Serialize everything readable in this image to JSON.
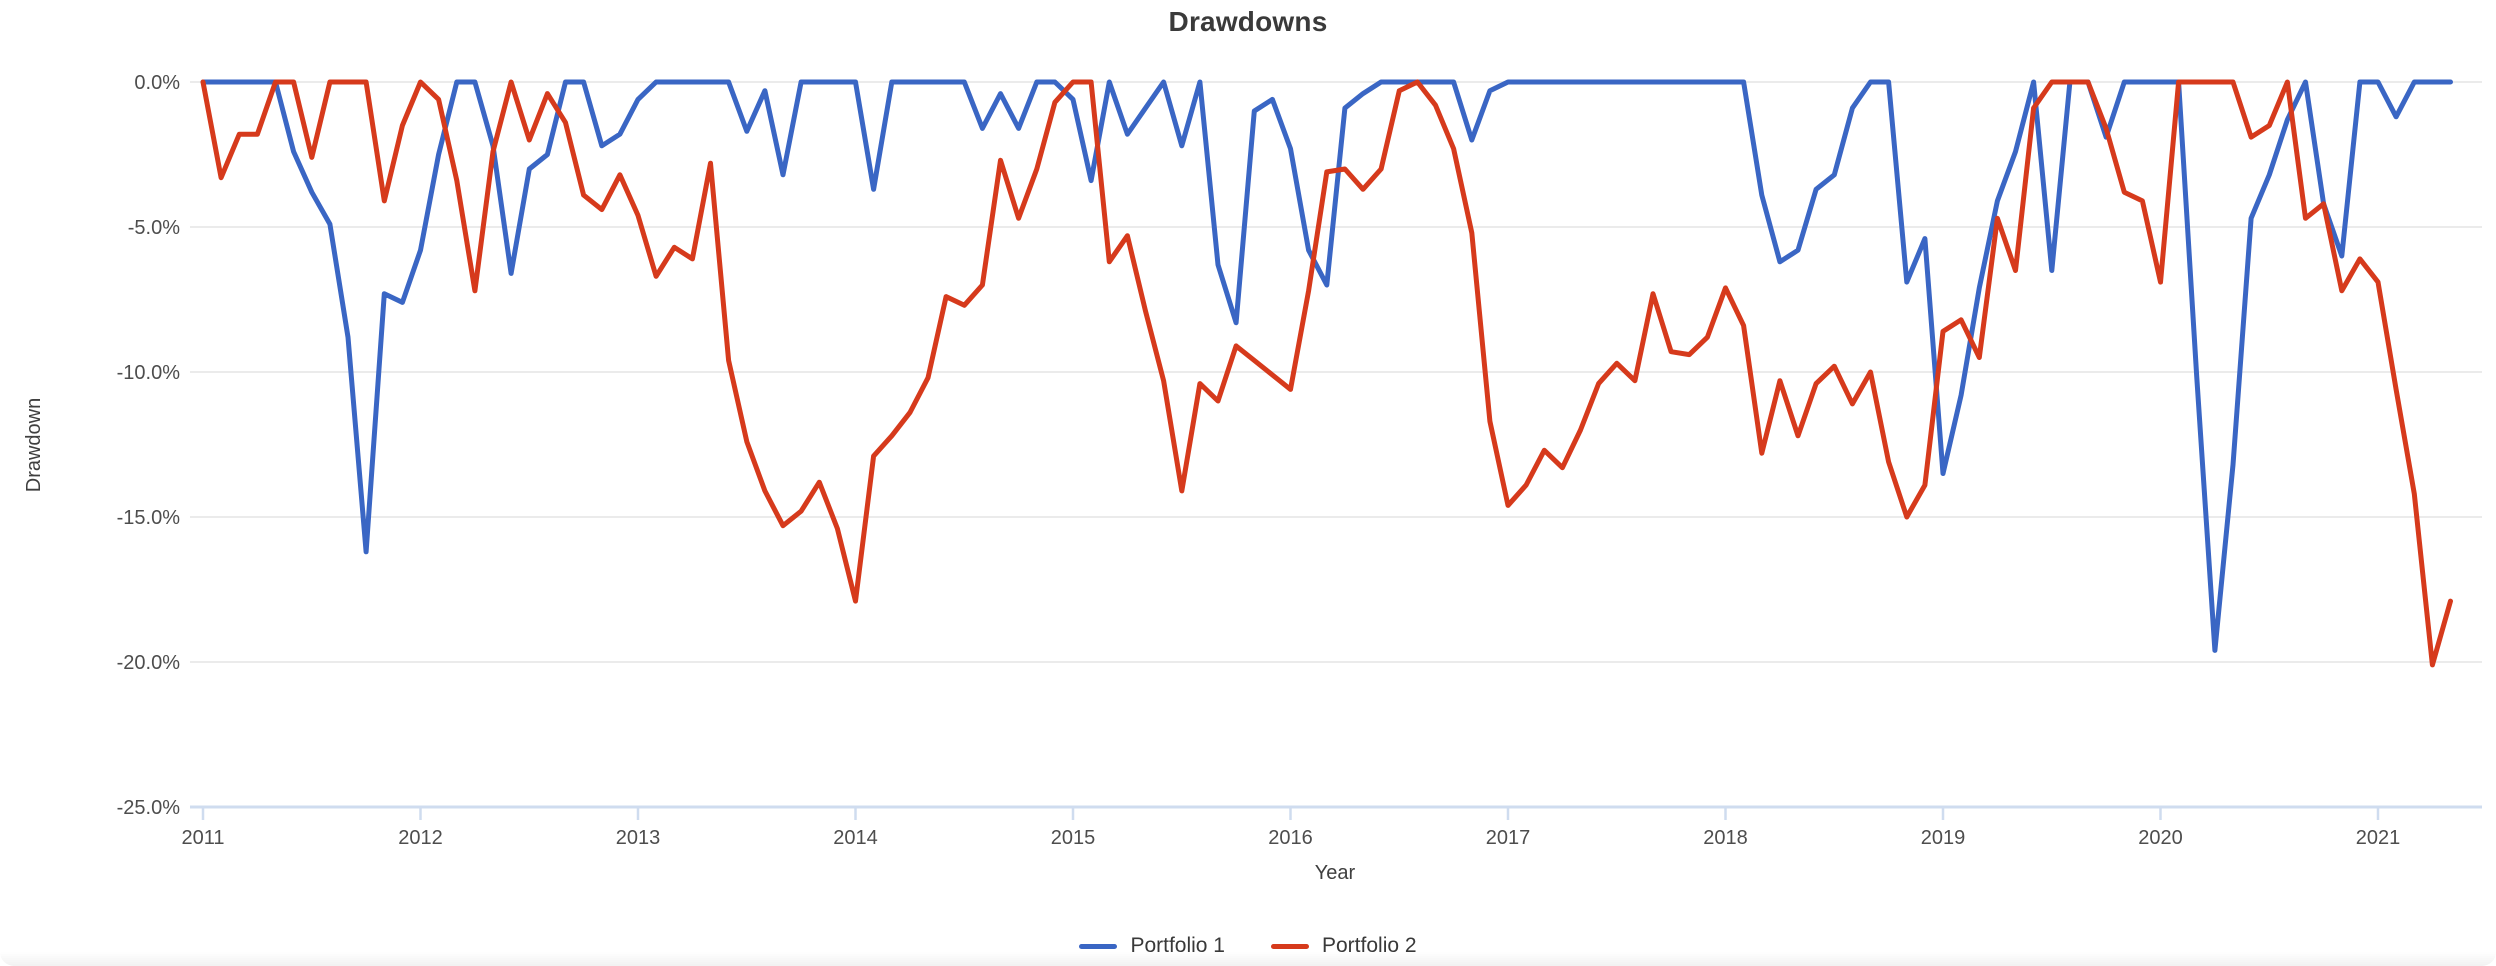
{
  "chart_data": {
    "type": "line",
    "title": "Drawdowns",
    "xlabel": "Year",
    "ylabel": "Drawdown",
    "x_tick_labels": [
      "2011",
      "2012",
      "2013",
      "2014",
      "2015",
      "2016",
      "2017",
      "2018",
      "2019",
      "2020",
      "2021"
    ],
    "x_frequency": "monthly",
    "x_start": "2011-01",
    "x_points": 125,
    "y_tick_labels": [
      "0.0%",
      "-5.0%",
      "-10.0%",
      "-15.0%",
      "-20.0%",
      "-25.0%"
    ],
    "y_tick_values": [
      0,
      -5,
      -10,
      -15,
      -20,
      -25
    ],
    "ylim": [
      -25,
      0
    ],
    "grid": true,
    "legend_position": "bottom",
    "colors": {
      "series1": "#3a66c4",
      "series2": "#d63a1c",
      "gridline": "#ebebeb",
      "axis_line": "#cfdcef",
      "tick_text": "#4d4d4d",
      "axis_title_text": "#3f3f3f",
      "title_text": "#3a3a3a"
    },
    "series": [
      {
        "name": "Portfolio 1",
        "color": "#3a66c4",
        "values": [
          0,
          0,
          0,
          0,
          0,
          -2.4,
          -3.8,
          -4.9,
          -8.8,
          -16.2,
          -7.3,
          -7.6,
          -5.8,
          -2.5,
          0,
          0,
          -2.2,
          -6.6,
          -3.0,
          -2.5,
          0,
          0,
          -2.2,
          -1.8,
          -0.6,
          0,
          0,
          0,
          0,
          0,
          -1.7,
          -0.3,
          -3.2,
          0,
          0,
          0,
          0,
          -3.7,
          0,
          0,
          0,
          0,
          0,
          -1.6,
          -0.4,
          -1.6,
          0,
          0,
          -0.6,
          -3.4,
          0,
          -1.8,
          -0.9,
          0,
          -2.2,
          0,
          -6.3,
          -8.3,
          -1.0,
          -0.6,
          -2.3,
          -5.8,
          -7.0,
          -0.9,
          -0.4,
          0,
          0,
          0,
          0,
          0,
          -2.0,
          -0.3,
          0,
          0,
          0,
          0,
          0,
          0,
          0,
          0,
          0,
          0,
          0,
          0,
          0,
          0,
          -3.9,
          -6.2,
          -5.8,
          -3.7,
          -3.2,
          -0.9,
          0,
          0,
          -6.9,
          -5.4,
          -13.5,
          -10.8,
          -7.1,
          -4.1,
          -2.4,
          0,
          -6.5,
          0,
          0,
          -1.9,
          0,
          0,
          0,
          0,
          -10.2,
          -19.6,
          -13.2,
          -4.7,
          -3.2,
          -1.3,
          0,
          -4.2,
          -6.0,
          0,
          0,
          -1.2,
          0,
          0,
          0
        ]
      },
      {
        "name": "Portfolio 2",
        "color": "#d63a1c",
        "values": [
          0,
          -3.3,
          -1.8,
          -1.8,
          0,
          0,
          -2.6,
          0,
          0,
          0,
          -4.1,
          -1.5,
          0,
          -0.6,
          -3.4,
          -7.2,
          -2.4,
          0,
          -2.0,
          -0.4,
          -1.4,
          -3.9,
          -4.4,
          -3.2,
          -4.6,
          -6.7,
          -5.7,
          -6.1,
          -2.8,
          -9.6,
          -12.4,
          -14.1,
          -15.3,
          -14.8,
          -13.8,
          -15.4,
          -17.9,
          -12.9,
          -12.2,
          -11.4,
          -10.2,
          -7.4,
          -7.7,
          -7.0,
          -2.7,
          -4.7,
          -3.0,
          -0.7,
          0,
          0,
          -6.2,
          -5.3,
          -7.9,
          -10.3,
          -14.1,
          -10.4,
          -11.0,
          -9.1,
          -9.6,
          -10.1,
          -10.6,
          -7.2,
          -3.1,
          -3.0,
          -3.7,
          -3.0,
          -0.3,
          0,
          -0.8,
          -2.3,
          -5.2,
          -11.7,
          -14.6,
          -13.9,
          -12.7,
          -13.3,
          -12.0,
          -10.4,
          -9.7,
          -10.3,
          -7.3,
          -9.3,
          -9.4,
          -8.8,
          -7.1,
          -8.4,
          -12.8,
          -10.3,
          -12.2,
          -10.4,
          -9.8,
          -11.1,
          -10.0,
          -13.1,
          -15.0,
          -13.9,
          -8.6,
          -8.2,
          -9.5,
          -4.7,
          -6.5,
          -0.9,
          0,
          0,
          0,
          -1.6,
          -3.8,
          -4.1,
          -6.9,
          0,
          0,
          0,
          0,
          -1.9,
          -1.5,
          0,
          -4.7,
          -4.2,
          -7.2,
          -6.1,
          -6.9,
          -10.6,
          -14.2,
          -20.1,
          -17.9
        ]
      }
    ]
  }
}
